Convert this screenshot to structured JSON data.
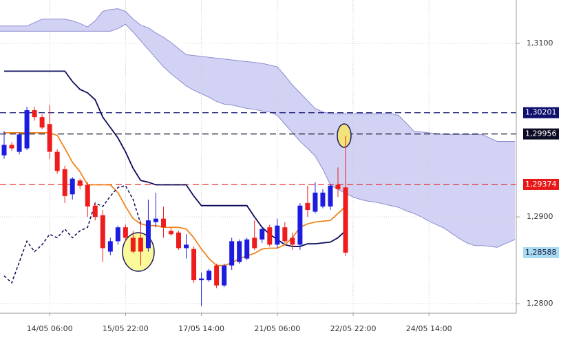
{
  "chart_data": {
    "type": "candlestick",
    "categories": [
      null,
      null,
      null,
      null,
      null,
      null,
      "14/05 06:00",
      null,
      null,
      null,
      null,
      null,
      null,
      null,
      null,
      null,
      "15/05 22:00",
      null,
      null,
      null,
      null,
      null,
      null,
      null,
      null,
      null,
      "17/05 14:00",
      null,
      null,
      null,
      null,
      null,
      null,
      null,
      null,
      null,
      "21/05 06:00",
      null,
      null,
      null,
      null,
      null,
      null,
      null,
      null,
      null,
      "22/05 22:00",
      null,
      null,
      null,
      null,
      null,
      null,
      null,
      null,
      null,
      "24/05 14:00",
      null,
      null,
      null,
      null,
      null,
      null,
      null,
      null,
      null,
      null,
      null
    ],
    "open": [
      1.2971,
      1.2983,
      1.2975,
      1.2979,
      1.3023,
      1.3015,
      1.3007,
      1.2975,
      1.2955,
      1.2926,
      1.2942,
      1.2937,
      1.2913,
      1.2902,
      1.286,
      1.2872,
      1.2888,
      1.2876,
      1.2876,
      1.2864,
      1.2894,
      1.2898,
      1.2884,
      1.2882,
      1.2864,
      1.2863,
      1.2827,
      1.2827,
      1.2844,
      1.2821,
      1.2844,
      1.2848,
      1.2852,
      1.2876,
      1.2874,
      1.2888,
      1.2868,
      1.2888,
      1.2876,
      1.2868,
      1.2916,
      1.2906,
      1.2912,
      1.2912,
      1.2937,
      1.2934,
      null,
      null,
      null,
      null,
      null,
      null,
      null,
      null,
      null,
      null,
      null,
      null,
      null,
      null,
      null,
      null,
      null,
      null,
      null,
      null,
      null,
      null
    ],
    "high": [
      1.2999,
      1.2986,
      1.2997,
      1.3027,
      1.3027,
      1.3018,
      1.3029,
      1.2978,
      1.2959,
      1.2946,
      1.2944,
      1.294,
      1.2916,
      1.2908,
      1.2876,
      1.289,
      1.2891,
      1.2884,
      1.2896,
      1.292,
      1.2928,
      1.2912,
      1.2888,
      1.2884,
      1.288,
      1.2866,
      1.2836,
      1.284,
      1.2846,
      1.2846,
      1.2876,
      1.2874,
      1.2876,
      1.2896,
      1.2888,
      1.2891,
      1.2898,
      1.2894,
      1.2882,
      1.2916,
      1.2936,
      1.294,
      1.2932,
      1.2938,
      1.2957,
      1.2993,
      null,
      null,
      null,
      null,
      null,
      null,
      null,
      null,
      null,
      null,
      null,
      null,
      null,
      null,
      null,
      null,
      null,
      null,
      null,
      null,
      null,
      null
    ],
    "low": [
      1.2967,
      1.2976,
      1.2972,
      1.2977,
      1.3011,
      1.3001,
      1.2967,
      1.295,
      1.2916,
      1.292,
      1.2932,
      1.29,
      1.2896,
      1.2848,
      1.2856,
      1.2868,
      1.2872,
      1.2858,
      1.2844,
      1.286,
      1.2888,
      1.2876,
      1.2878,
      1.2862,
      1.2852,
      1.2824,
      1.2797,
      1.2825,
      1.2818,
      1.2819,
      1.2839,
      1.2846,
      1.285,
      1.2862,
      1.287,
      1.2866,
      1.2864,
      1.287,
      1.2862,
      1.2862,
      1.29,
      1.2904,
      1.291,
      1.2908,
      1.2923,
      1.2855,
      null,
      null,
      null,
      null,
      null,
      null,
      null,
      null,
      null,
      null,
      null,
      null,
      null,
      null,
      null,
      null,
      null,
      null,
      null,
      null,
      null,
      null
    ],
    "close": [
      1.2983,
      1.2979,
      1.2995,
      1.3023,
      1.3015,
      1.3003,
      1.2975,
      1.2953,
      1.2924,
      1.2944,
      1.2936,
      1.2912,
      1.29,
      1.2864,
      1.2872,
      1.2888,
      1.2876,
      1.286,
      1.286,
      1.2896,
      1.2898,
      1.2888,
      1.288,
      1.2864,
      1.2868,
      1.2827,
      1.2829,
      1.2838,
      1.2821,
      1.2844,
      1.2872,
      1.2872,
      1.2874,
      1.2864,
      1.2886,
      1.2868,
      1.289,
      1.2872,
      1.2868,
      1.2913,
      1.2908,
      1.2928,
      1.2928,
      1.2936,
      1.2932,
      1.28588,
      null,
      null,
      null,
      null,
      null,
      null,
      null,
      null,
      null,
      null,
      null,
      null,
      null,
      null,
      null,
      null,
      null,
      null,
      null,
      null,
      null,
      null
    ],
    "up_color": "#1c1ce0",
    "down_color": "#ee1c1c",
    "series": [
      {
        "color": "#0a0a5a",
        "dashed": false,
        "values": [
          1.3068,
          1.3068,
          1.3068,
          1.3068,
          1.3068,
          1.3068,
          1.3068,
          1.3068,
          1.3068,
          1.3056,
          1.3047,
          1.3043,
          1.3035,
          1.3015,
          1.3003,
          1.2991,
          1.2975,
          1.2956,
          1.2942,
          1.294,
          1.2937,
          1.2937,
          1.2937,
          1.2937,
          1.2937,
          1.2924,
          1.2913,
          1.2913,
          1.2913,
          1.2913,
          1.2913,
          1.2913,
          1.2913,
          1.29,
          1.2888,
          1.288,
          1.2874,
          1.2868,
          1.2866,
          1.2866,
          1.2869,
          1.2869,
          1.287,
          1.2871,
          1.2876,
          1.2884,
          null,
          null,
          null,
          null,
          null,
          null,
          null,
          null,
          null,
          null,
          null,
          null,
          null,
          null,
          null,
          null,
          null,
          null,
          null,
          null,
          null,
          null
        ]
      },
      {
        "color": "#f0841c",
        "dashed": false,
        "values": [
          1.2997,
          1.2997,
          1.2997,
          1.2997,
          1.2997,
          1.2997,
          1.2997,
          1.2994,
          1.2979,
          1.2963,
          1.2952,
          1.2937,
          1.2937,
          1.2937,
          1.2937,
          1.2928,
          1.2912,
          1.2898,
          1.2892,
          1.289,
          1.289,
          1.2888,
          1.2888,
          1.2888,
          1.2886,
          1.2876,
          1.2863,
          1.2852,
          1.2844,
          1.2844,
          1.2847,
          1.2852,
          1.2855,
          1.2858,
          1.2863,
          1.2864,
          1.2864,
          1.2868,
          1.2876,
          1.2888,
          1.2892,
          1.2894,
          1.2895,
          1.2896,
          1.2904,
          1.2912,
          null,
          null,
          null,
          null,
          null,
          null,
          null,
          null,
          null,
          null,
          null,
          null,
          null,
          null,
          null,
          null,
          null,
          null,
          null,
          null,
          null,
          null
        ]
      },
      {
        "color": "#0a0a5a",
        "dashed": true,
        "values": [
          1.2832,
          1.2824,
          1.2848,
          1.2872,
          1.286,
          1.2868,
          1.288,
          1.2876,
          1.2886,
          1.2876,
          1.2884,
          1.2888,
          1.2916,
          1.2912,
          1.2924,
          1.2934,
          1.2936,
          1.292,
          1.2892,
          null,
          null,
          null,
          null,
          null,
          null,
          null,
          null,
          null,
          null,
          null,
          null,
          null,
          null,
          null,
          null,
          null,
          null,
          null,
          null,
          null,
          null,
          null,
          null,
          null,
          null,
          null,
          null,
          null,
          null,
          null,
          null,
          null,
          null,
          null,
          null,
          null,
          null,
          null,
          null,
          null,
          null,
          null,
          null,
          null,
          null,
          null,
          null,
          null
        ]
      }
    ],
    "cloud": {
      "color": "#d2d2f5",
      "edge_color": "#8c8cd0",
      "upper": [
        1.312,
        1.312,
        1.312,
        1.312,
        1.3124,
        1.3128,
        1.3128,
        1.3128,
        1.3128,
        1.3126,
        1.3123,
        1.3119,
        1.3126,
        1.3137,
        1.3139,
        1.314,
        1.3137,
        1.3128,
        1.3121,
        1.3118,
        1.3112,
        1.3107,
        1.3101,
        1.3094,
        1.3087,
        1.3086,
        1.3085,
        1.3084,
        1.3083,
        1.3082,
        1.3081,
        1.308,
        1.3079,
        1.3078,
        1.3077,
        1.3075,
        1.3073,
        1.3063,
        1.3052,
        1.3043,
        1.3034,
        1.3025,
        1.3021,
        1.3019,
        1.3019,
        1.3019,
        1.3019,
        1.3019,
        1.3019,
        1.3019,
        1.3019,
        1.3019,
        1.3017,
        1.3008,
        1.2999,
        1.2998,
        1.2997,
        1.2996,
        1.2995,
        1.2995,
        1.2995,
        1.2995,
        1.2995,
        1.2995,
        1.2991,
        1.2987,
        1.2987,
        1.2987
      ],
      "lower": [
        1.3114,
        1.3114,
        1.3114,
        1.3114,
        1.3114,
        1.3114,
        1.3114,
        1.3114,
        1.3114,
        1.3114,
        1.3114,
        1.3114,
        1.3114,
        1.3114,
        1.3114,
        1.3117,
        1.3122,
        1.3113,
        1.3103,
        1.3093,
        1.3083,
        1.3073,
        1.3065,
        1.3058,
        1.3051,
        1.3046,
        1.3042,
        1.3038,
        1.3033,
        1.303,
        1.3029,
        1.3027,
        1.3025,
        1.3024,
        1.3022,
        1.3021,
        1.3017,
        1.3007,
        1.2997,
        1.2987,
        1.2979,
        1.297,
        1.2955,
        1.2937,
        1.2932,
        1.2927,
        1.2923,
        1.292,
        1.2918,
        1.2917,
        1.2915,
        1.2913,
        1.2911,
        1.2907,
        1.2904,
        1.29,
        1.2895,
        1.2891,
        1.2887,
        1.2881,
        1.2875,
        1.287,
        1.2867,
        1.2867,
        1.2866,
        1.2865,
        1.2869,
        1.2874
      ]
    },
    "levels": [
      {
        "value": 1.30201,
        "label": "1,30201",
        "color": "#10106e"
      },
      {
        "value": 1.29956,
        "label": "1,29956",
        "color": "#0c0c24"
      },
      {
        "value": 1.29374,
        "label": "1,29374",
        "color": "#e81818"
      }
    ],
    "price_label": {
      "value": 1.28588,
      "label": "1,28588",
      "color": "#a8dcf2"
    },
    "ylim": [
      1.2789,
      1.315
    ],
    "yticks": [
      {
        "value": 1.31,
        "label": "1,3100"
      },
      {
        "value": 1.29,
        "label": "1,2900"
      },
      {
        "value": 1.28,
        "label": "1,2800"
      }
    ],
    "grid": true
  }
}
